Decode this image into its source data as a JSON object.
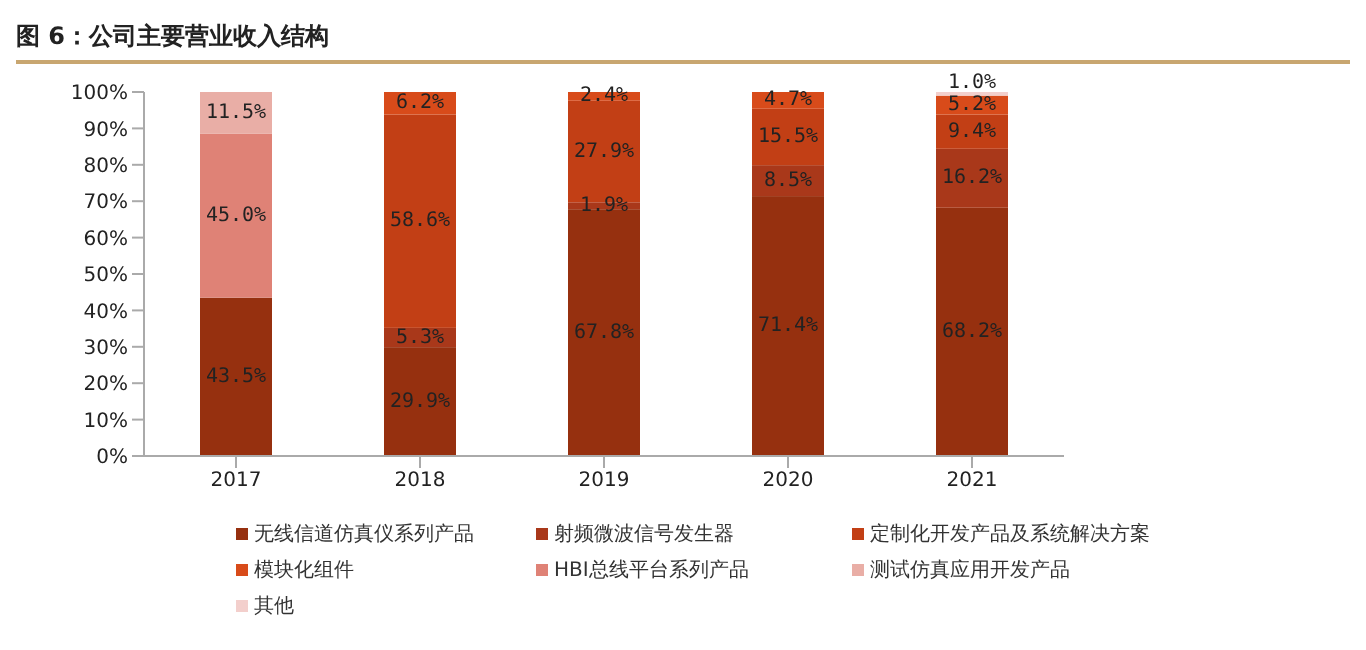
{
  "chart_data": {
    "type": "bar",
    "title": "图 6：公司主要营业收入结构",
    "stacked": true,
    "categories": [
      "2017",
      "2018",
      "2019",
      "2020",
      "2021"
    ],
    "series": [
      {
        "name": "无线信道仿真仪系列产品",
        "color": "#96300f",
        "values": [
          43.5,
          29.9,
          67.8,
          71.4,
          68.2
        ],
        "value_labels": [
          "43.5%",
          "29.9%",
          "67.8%",
          "71.4%",
          "68.2%"
        ]
      },
      {
        "name": "射频微波信号发生器",
        "color": "#a9381a",
        "values": [
          null,
          5.3,
          1.9,
          8.5,
          16.2
        ],
        "value_labels": [
          null,
          "5.3%",
          "1.9%",
          "8.5%",
          "16.2%"
        ]
      },
      {
        "name": "定制化开发产品及系统解决方案",
        "color": "#c23f15",
        "values": [
          null,
          58.6,
          27.9,
          15.5,
          9.4
        ],
        "value_labels": [
          null,
          "58.6%",
          "27.9%",
          "15.5%",
          "9.4%"
        ]
      },
      {
        "name": "模块化组件",
        "color": "#d84b1a",
        "values": [
          null,
          6.2,
          2.4,
          4.7,
          5.2
        ],
        "value_labels": [
          null,
          "6.2%",
          "2.4%",
          "4.7%",
          "5.2%"
        ]
      },
      {
        "name": "HBI总线平台系列产品",
        "color": "#df8276",
        "values": [
          45.0,
          null,
          null,
          null,
          null
        ],
        "value_labels": [
          "45.0%",
          null,
          null,
          null,
          null
        ]
      },
      {
        "name": "测试仿真应用开发产品",
        "color": "#e9aea6",
        "values": [
          11.5,
          null,
          null,
          null,
          null
        ],
        "value_labels": [
          "11.5%",
          null,
          null,
          null,
          null
        ]
      },
      {
        "name": "其他",
        "color": "#f3cfcc",
        "values": [
          null,
          null,
          null,
          null,
          1.0
        ],
        "value_labels": [
          null,
          null,
          null,
          null,
          "1.0%"
        ]
      }
    ],
    "ylim": [
      0,
      100
    ],
    "yticks": [
      {
        "value": 0,
        "label": "0%"
      },
      {
        "value": 10,
        "label": "10%"
      },
      {
        "value": 20,
        "label": "20%"
      },
      {
        "value": 30,
        "label": "30%"
      },
      {
        "value": 40,
        "label": "40%"
      },
      {
        "value": 50,
        "label": "50%"
      },
      {
        "value": 60,
        "label": "60%"
      },
      {
        "value": 70,
        "label": "70%"
      },
      {
        "value": 80,
        "label": "80%"
      },
      {
        "value": 90,
        "label": "90%"
      },
      {
        "value": 100,
        "label": "100%"
      }
    ],
    "grid": false,
    "legend": "bottom"
  }
}
